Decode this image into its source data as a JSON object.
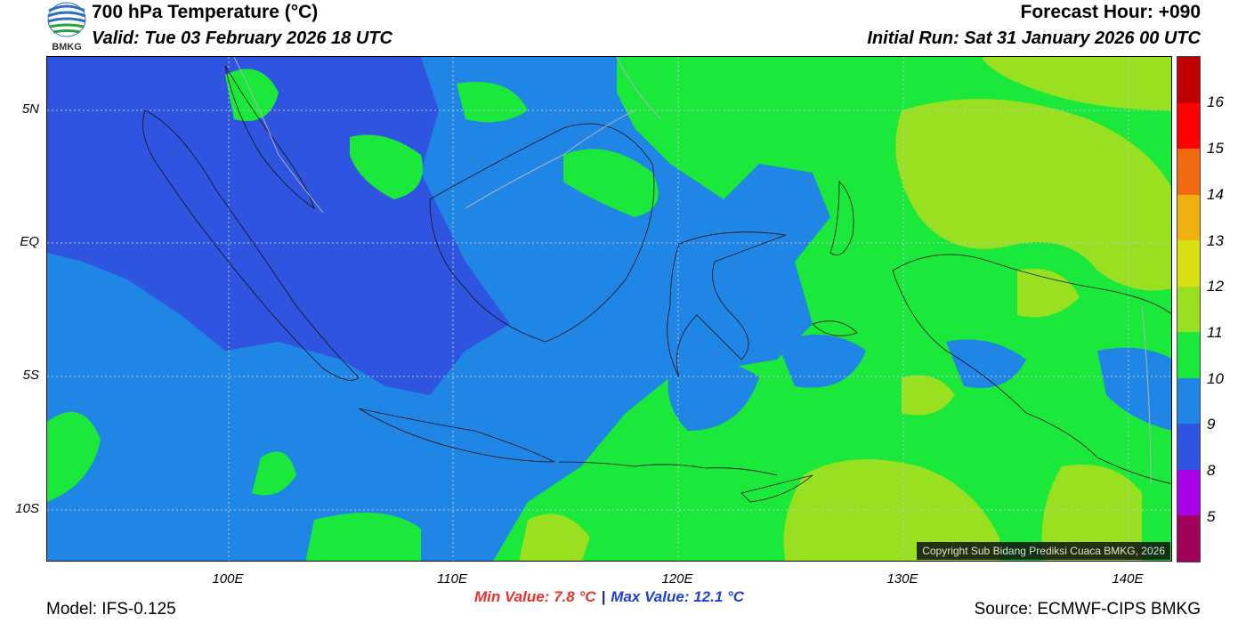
{
  "header": {
    "title": "700 hPa Temperature (°C)",
    "valid": "Valid: Tue 03 February 2026 18 UTC",
    "forecast_hour": "Forecast Hour: +090",
    "initial_run": "Initial Run: Sat 31 January 2026 00 UTC"
  },
  "logo": {
    "text": "BMKG",
    "icon": "bmkg-globe-logo"
  },
  "map": {
    "lon_range": [
      92,
      142
    ],
    "lat_range": [
      -12,
      7
    ],
    "lat_ticks": [
      {
        "lat": 5,
        "label": "5N"
      },
      {
        "lat": 0,
        "label": "EQ"
      },
      {
        "lat": -5,
        "label": "5S"
      },
      {
        "lat": -10,
        "label": "10S"
      }
    ],
    "lon_ticks": [
      {
        "lon": 100,
        "label": "100E"
      },
      {
        "lon": 110,
        "label": "110E"
      },
      {
        "lon": 120,
        "label": "120E"
      },
      {
        "lon": 130,
        "label": "130E"
      },
      {
        "lon": 140,
        "label": "140E"
      }
    ],
    "copyright": "Copyright Sub Bidang Prediksi Cuaca BMKG, 2026"
  },
  "colorbar": {
    "labels": [
      "16",
      "15",
      "14",
      "13",
      "12",
      "11",
      "10",
      "9",
      "8",
      "5"
    ],
    "colors": [
      "#c00000",
      "#ff0000",
      "#f06a10",
      "#f0b010",
      "#d8e010",
      "#98e020",
      "#1ae83a",
      "#1f86e6",
      "#2f55e0",
      "#a800e8",
      "#a0005a"
    ]
  },
  "stats": {
    "min": "Min Value: 7.8 °C",
    "separator": "|",
    "max": "Max Value: 12.1 °C"
  },
  "footer": {
    "model": "Model: IFS-0.125",
    "source": "Source: ECMWF-CIPS BMKG"
  }
}
